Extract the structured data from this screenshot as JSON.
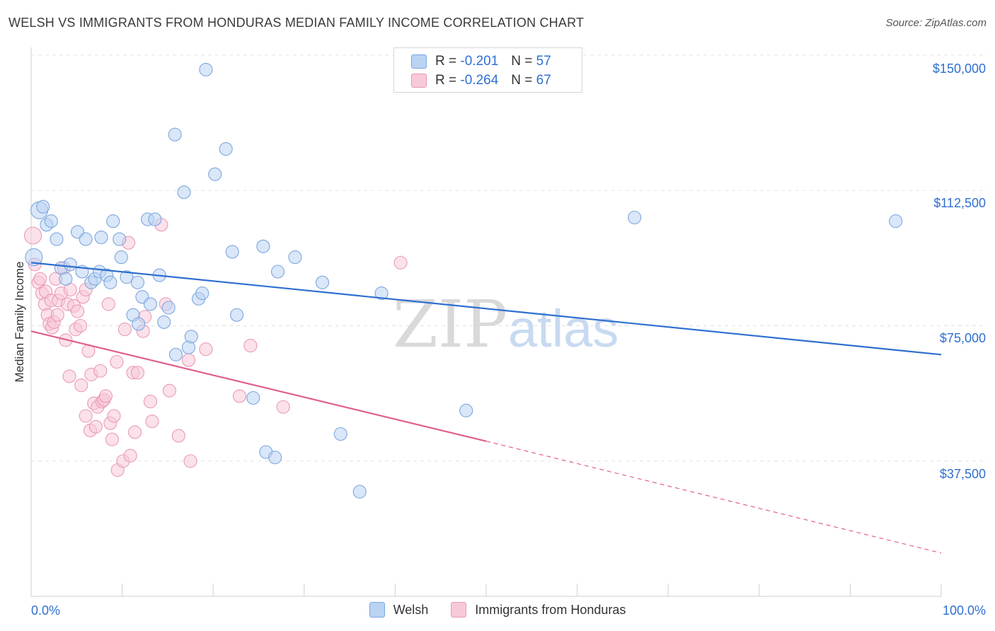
{
  "header": {
    "title": "WELSH VS IMMIGRANTS FROM HONDURAS MEDIAN FAMILY INCOME CORRELATION CHART",
    "source": "Source: ZipAtlas.com"
  },
  "legend": {
    "rows": [
      {
        "r_label": "R =",
        "r_value": "-0.201",
        "n_label": "N =",
        "n_value": "57"
      },
      {
        "r_label": "R =",
        "r_value": "-0.264",
        "n_label": "N =",
        "n_value": "67"
      }
    ]
  },
  "bottom_legend": {
    "series1": "Welsh",
    "series2": "Immigrants from Honduras"
  },
  "watermark": {
    "zip": "ZIP",
    "atlas": "atlas"
  },
  "colors": {
    "welsh_fill": "#b9d3f3",
    "welsh_stroke": "#7ea6dd",
    "welsh_line": "#2f6fd0",
    "honduras_fill": "#f8c9d8",
    "honduras_stroke": "#e99ab4",
    "honduras_line": "#e0608d",
    "tick_label": "#2f6fd0",
    "grid": "#e3e3e3"
  },
  "chart_data": {
    "type": "scatter",
    "title": "WELSH VS IMMIGRANTS FROM HONDURAS MEDIAN FAMILY INCOME CORRELATION CHART",
    "xlabel": "",
    "ylabel": "Median Family Income",
    "xlim": [
      0,
      100
    ],
    "ylim": [
      0,
      150000
    ],
    "x_tick_labels": [
      "0.0%",
      "100.0%"
    ],
    "y_ticks": [
      37500,
      75000,
      112500,
      150000
    ],
    "y_tick_labels": [
      "$37,500",
      "$75,000",
      "$112,500",
      "$150,000"
    ],
    "grid": true,
    "legend_position": "top-center",
    "series": [
      {
        "name": "Welsh",
        "stats": {
          "R": -0.201,
          "N": 57
        },
        "trend": {
          "x": [
            0,
            100
          ],
          "y": [
            92500,
            67000
          ],
          "style": "solid"
        },
        "points": [
          [
            0.3,
            94000
          ],
          [
            0.9,
            107000
          ],
          [
            1.3,
            108000
          ],
          [
            1.7,
            103000
          ],
          [
            2.2,
            104000
          ],
          [
            2.8,
            99000
          ],
          [
            3.3,
            91000
          ],
          [
            3.8,
            88000
          ],
          [
            4.3,
            92000
          ],
          [
            5.1,
            101000
          ],
          [
            5.6,
            90000
          ],
          [
            6.0,
            99000
          ],
          [
            6.6,
            87000
          ],
          [
            7.0,
            88000
          ],
          [
            7.5,
            90000
          ],
          [
            7.7,
            99500
          ],
          [
            8.3,
            89000
          ],
          [
            8.7,
            87000
          ],
          [
            9.0,
            104000
          ],
          [
            9.7,
            99000
          ],
          [
            9.9,
            94000
          ],
          [
            10.5,
            88500
          ],
          [
            11.2,
            78000
          ],
          [
            11.7,
            87000
          ],
          [
            12.2,
            83000
          ],
          [
            12.8,
            104500
          ],
          [
            13.1,
            81000
          ],
          [
            13.6,
            104500
          ],
          [
            14.1,
            89000
          ],
          [
            14.6,
            76000
          ],
          [
            15.1,
            80000
          ],
          [
            15.8,
            128000
          ],
          [
            15.9,
            67000
          ],
          [
            16.8,
            112000
          ],
          [
            17.3,
            69000
          ],
          [
            17.6,
            72000
          ],
          [
            18.4,
            82500
          ],
          [
            18.8,
            84000
          ],
          [
            19.2,
            146000
          ],
          [
            20.2,
            117000
          ],
          [
            21.4,
            124000
          ],
          [
            22.1,
            95500
          ],
          [
            22.6,
            78000
          ],
          [
            24.4,
            55000
          ],
          [
            25.5,
            97000
          ],
          [
            25.8,
            40000
          ],
          [
            26.8,
            38500
          ],
          [
            27.1,
            90000
          ],
          [
            29.0,
            94000
          ],
          [
            32.0,
            87000
          ],
          [
            34.0,
            45000
          ],
          [
            36.1,
            29000
          ],
          [
            38.5,
            84000
          ],
          [
            47.8,
            51500
          ],
          [
            66.3,
            105000
          ],
          [
            95.0,
            104000
          ],
          [
            11.8,
            75500
          ]
        ]
      },
      {
        "name": "Immigrants from Honduras",
        "stats": {
          "R": -0.264,
          "N": 67
        },
        "trend": {
          "x": [
            0,
            50
          ],
          "y": [
            73500,
            43000
          ],
          "style": "solid",
          "dashed_to": {
            "x": 100,
            "y": 12000
          }
        },
        "points": [
          [
            0.2,
            100000
          ],
          [
            0.4,
            92000
          ],
          [
            0.8,
            87000
          ],
          [
            1.0,
            88000
          ],
          [
            1.2,
            84000
          ],
          [
            1.5,
            81000
          ],
          [
            1.6,
            84500
          ],
          [
            1.8,
            78000
          ],
          [
            2.0,
            75500
          ],
          [
            2.2,
            82000
          ],
          [
            2.3,
            74500
          ],
          [
            2.5,
            76000
          ],
          [
            2.7,
            88000
          ],
          [
            2.9,
            78000
          ],
          [
            3.0,
            82000
          ],
          [
            3.3,
            84000
          ],
          [
            3.6,
            91000
          ],
          [
            3.8,
            71000
          ],
          [
            4.0,
            81000
          ],
          [
            4.2,
            61000
          ],
          [
            4.3,
            85000
          ],
          [
            4.7,
            80500
          ],
          [
            4.9,
            74000
          ],
          [
            5.1,
            79000
          ],
          [
            5.4,
            75000
          ],
          [
            5.5,
            58500
          ],
          [
            5.7,
            83000
          ],
          [
            6.0,
            50000
          ],
          [
            6.0,
            85000
          ],
          [
            6.3,
            68000
          ],
          [
            6.5,
            46000
          ],
          [
            6.6,
            61500
          ],
          [
            6.9,
            53500
          ],
          [
            7.1,
            47000
          ],
          [
            7.3,
            52500
          ],
          [
            7.6,
            62500
          ],
          [
            7.8,
            54000
          ],
          [
            8.0,
            54500
          ],
          [
            8.2,
            55500
          ],
          [
            8.5,
            81000
          ],
          [
            8.7,
            48000
          ],
          [
            8.9,
            43500
          ],
          [
            9.1,
            50000
          ],
          [
            9.4,
            65000
          ],
          [
            9.5,
            35000
          ],
          [
            10.1,
            37500
          ],
          [
            10.3,
            74000
          ],
          [
            10.7,
            98000
          ],
          [
            10.9,
            39000
          ],
          [
            11.2,
            62000
          ],
          [
            11.4,
            45500
          ],
          [
            11.7,
            62000
          ],
          [
            12.3,
            73500
          ],
          [
            12.5,
            77500
          ],
          [
            13.1,
            54000
          ],
          [
            13.3,
            48500
          ],
          [
            14.3,
            103000
          ],
          [
            14.8,
            81000
          ],
          [
            15.2,
            57000
          ],
          [
            16.2,
            44500
          ],
          [
            17.3,
            65500
          ],
          [
            17.5,
            37500
          ],
          [
            19.2,
            68500
          ],
          [
            22.9,
            55500
          ],
          [
            24.1,
            69500
          ],
          [
            27.7,
            52500
          ],
          [
            40.6,
            92500
          ]
        ]
      }
    ]
  }
}
